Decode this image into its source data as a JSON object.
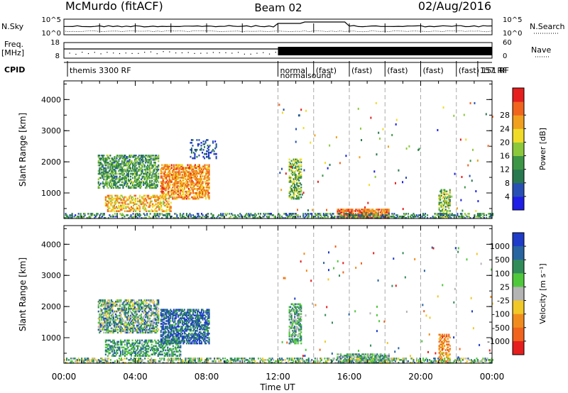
{
  "header": {
    "station": "McMurdo (fitACF)",
    "beam": "Beam 02",
    "date": "02/Aug/2016"
  },
  "top_panels": {
    "nsky_label": "N.Sky",
    "nsky_tick_top": "10^5",
    "nsky_tick_bottom": "10^0",
    "nsearch_label": "N.Search",
    "nsearch_tick_top": "10^5",
    "nsearch_tick_bottom": "10^0",
    "freq_label_1": "Freq.",
    "freq_label_2": "[MHz]",
    "freq_tick_top": "18",
    "freq_tick_bottom": "8",
    "nave_label": "Nave",
    "nave_tick_top": "60",
    "nave_tick_bottom": "0",
    "cpid_label": "CPID",
    "cpid_segments": [
      {
        "label": "themis 3300 RF",
        "start_h": 0.2
      },
      {
        "label": "normal",
        "start_h": 12.0
      },
      {
        "label": "normalsound",
        "start_h": 12.0
      },
      {
        "label": "(fast)",
        "start_h": 14.0
      },
      {
        "label": "(fast)",
        "start_h": 16.0
      },
      {
        "label": "(fast)",
        "start_h": 18.0
      },
      {
        "label": "(fast)",
        "start_h": 20.0
      },
      {
        "label": "(fast) 151 RF",
        "start_h": 22.0
      },
      {
        "label": "157 RF",
        "start_h": 23.2
      }
    ]
  },
  "chart_data": [
    {
      "type": "heatmap",
      "quantity": "Power",
      "ylabel": "Slant Range [km]",
      "xlim_hours": [
        0,
        24
      ],
      "ylim_km": [
        180,
        4600
      ],
      "yticks": [
        1000,
        2000,
        3000,
        4000
      ],
      "colorbar": {
        "label": "Power [dB]",
        "ticks": [
          "4",
          "8",
          "12",
          "16",
          "20",
          "24",
          "28"
        ],
        "colors": [
          "#1e1ee6",
          "#2850b4",
          "#287850",
          "#3c9646",
          "#8cc83c",
          "#f0dc28",
          "#f0a01e",
          "#f0641e",
          "#e61e1e"
        ]
      },
      "regions": [
        {
          "t0": 1.9,
          "t1": 5.3,
          "r0": 1150,
          "r1": 2200,
          "mean": 12,
          "spread": 6,
          "density": 0.55
        },
        {
          "t0": 5.4,
          "t1": 8.1,
          "r0": 800,
          "r1": 1900,
          "mean": 24,
          "spread": 5,
          "density": 0.6
        },
        {
          "t0": 2.3,
          "t1": 6.0,
          "r0": 400,
          "r1": 900,
          "mean": 22,
          "spread": 6,
          "density": 0.45
        },
        {
          "t0": 7.0,
          "t1": 8.5,
          "r0": 2100,
          "r1": 2700,
          "mean": 6,
          "spread": 4,
          "density": 0.2
        },
        {
          "t0": 12.6,
          "t1": 13.3,
          "r0": 800,
          "r1": 2100,
          "mean": 14,
          "spread": 7,
          "density": 0.5
        },
        {
          "t0": 15.3,
          "t1": 18.2,
          "r0": 180,
          "r1": 480,
          "mean": 26,
          "spread": 4,
          "density": 0.7
        },
        {
          "t0": 21.0,
          "t1": 21.6,
          "r0": 180,
          "r1": 1100,
          "mean": 16,
          "spread": 7,
          "density": 0.45
        },
        {
          "t0": 0.0,
          "t1": 24.0,
          "r0": 180,
          "r1": 330,
          "mean": 10,
          "spread": 7,
          "density": 0.4
        }
      ]
    },
    {
      "type": "heatmap",
      "quantity": "Velocity",
      "ylabel": "Slant Range [km]",
      "xlabel": "Time UT",
      "xticks": [
        "00:00",
        "04:00",
        "08:00",
        "12:00",
        "16:00",
        "20:00",
        "00:00"
      ],
      "xlim_hours": [
        0,
        24
      ],
      "ylim_km": [
        180,
        4600
      ],
      "yticks": [
        1000,
        2000,
        3000,
        4000
      ],
      "colorbar": {
        "label": "Velocity [m s⁻¹]",
        "ticks": [
          "1000",
          "500",
          "100",
          "25",
          "-25",
          "-100",
          "-500",
          "-1000"
        ],
        "colors": [
          "#1e3cc8",
          "#2864a0",
          "#328c5a",
          "#50c83c",
          "#b4b4b4",
          "#f0c828",
          "#f08c1e",
          "#f0641e",
          "#e61e1e"
        ]
      },
      "regions": [
        {
          "t0": 1.9,
          "t1": 5.3,
          "r0": 1150,
          "r1": 2200,
          "mean": 0.35,
          "spread": 0.3,
          "density": 0.55
        },
        {
          "t0": 5.4,
          "t1": 8.1,
          "r0": 800,
          "r1": 1900,
          "mean": 0.15,
          "spread": 0.2,
          "density": 0.6
        },
        {
          "t0": 2.3,
          "t1": 6.5,
          "r0": 400,
          "r1": 900,
          "mean": 0.3,
          "spread": 0.15,
          "density": 0.45
        },
        {
          "t0": 12.6,
          "t1": 13.3,
          "r0": 800,
          "r1": 2100,
          "mean": 0.35,
          "spread": 0.2,
          "density": 0.5
        },
        {
          "t0": 15.3,
          "t1": 18.2,
          "r0": 180,
          "r1": 480,
          "mean": 0.35,
          "spread": 0.2,
          "density": 0.7
        },
        {
          "t0": 21.0,
          "t1": 21.6,
          "r0": 180,
          "r1": 1100,
          "mean": 0.75,
          "spread": 0.15,
          "density": 0.45
        },
        {
          "t0": 0.0,
          "t1": 24.0,
          "r0": 180,
          "r1": 330,
          "mean": 0.4,
          "spread": 0.25,
          "density": 0.4
        }
      ]
    }
  ]
}
